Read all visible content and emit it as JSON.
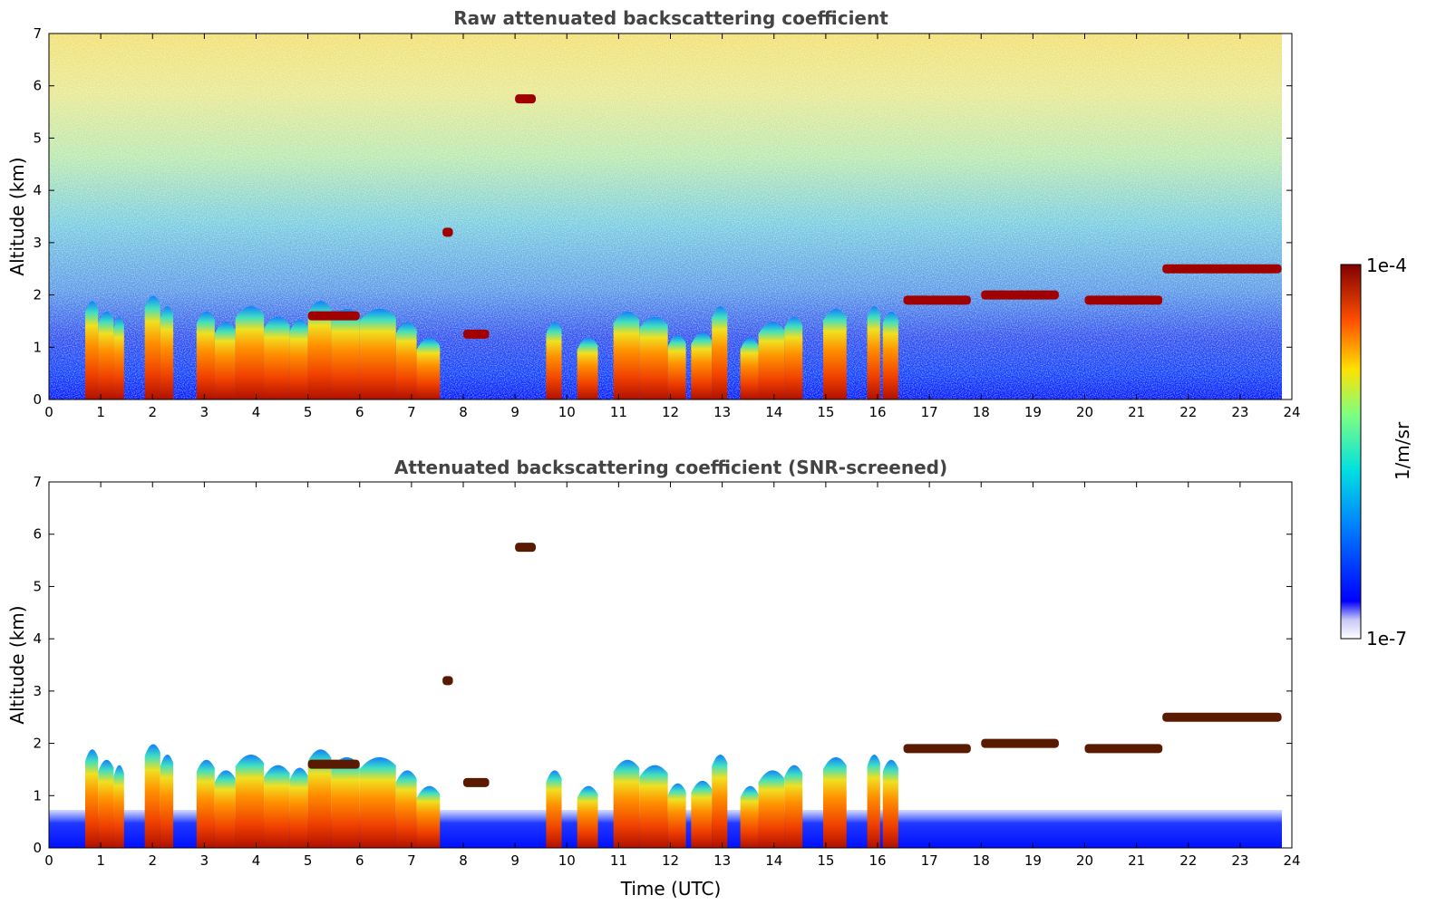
{
  "chart_data": [
    {
      "type": "heatmap",
      "title": "Raw attenuated backscattering coefficient",
      "xlabel": "",
      "ylabel": "Altitude (km)",
      "xlim": [
        0,
        24
      ],
      "ylim": [
        0,
        7
      ],
      "xticks": [
        "0",
        "1",
        "2",
        "3",
        "4",
        "5",
        "6",
        "7",
        "8",
        "9",
        "10",
        "11",
        "12",
        "13",
        "14",
        "15",
        "16",
        "17",
        "18",
        "19",
        "20",
        "21",
        "22",
        "23",
        "24"
      ],
      "yticks": [
        "0",
        "1",
        "2",
        "3",
        "4",
        "5",
        "6",
        "7"
      ],
      "data_extent_x": [
        0,
        23.8
      ],
      "grid": false,
      "colormap": "jet",
      "colorscale": "log",
      "clim": [
        "1e-7",
        "1e-4"
      ],
      "cloud_layers": [
        {
          "t_start": 5.0,
          "t_end": 6.0,
          "altitude": 1.6
        },
        {
          "t_start": 8.0,
          "t_end": 8.5,
          "altitude": 1.25
        },
        {
          "t_start": 9.0,
          "t_end": 9.4,
          "altitude": 5.75
        },
        {
          "t_start": 7.6,
          "t_end": 7.8,
          "altitude": 3.2
        },
        {
          "t_start": 16.5,
          "t_end": 17.8,
          "altitude": 1.9
        },
        {
          "t_start": 18.0,
          "t_end": 19.5,
          "altitude": 2.0
        },
        {
          "t_start": 20.0,
          "t_end": 21.5,
          "altitude": 1.9
        },
        {
          "t_start": 21.5,
          "t_end": 23.8,
          "altitude": 2.5
        }
      ]
    },
    {
      "type": "heatmap",
      "title": "Attenuated backscattering coefficient (SNR-screened)",
      "xlabel": "Time (UTC)",
      "ylabel": "Altitude (km)",
      "xlim": [
        0,
        24
      ],
      "ylim": [
        0,
        7
      ],
      "xticks": [
        "0",
        "1",
        "2",
        "3",
        "4",
        "5",
        "6",
        "7",
        "8",
        "9",
        "10",
        "11",
        "12",
        "13",
        "14",
        "15",
        "16",
        "17",
        "18",
        "19",
        "20",
        "21",
        "22",
        "23",
        "24"
      ],
      "yticks": [
        "0",
        "1",
        "2",
        "3",
        "4",
        "5",
        "6",
        "7"
      ],
      "data_extent_x": [
        0,
        23.8
      ],
      "grid": false,
      "colormap": "jet",
      "colorscale": "log",
      "clim": [
        "1e-7",
        "1e-4"
      ]
    }
  ],
  "colorbar": {
    "label": "1/m/sr",
    "max_label": "1e-4",
    "min_label": "1e-7"
  },
  "aerosol_columns": [
    [
      0.7,
      0.95,
      1.9
    ],
    [
      0.95,
      1.25,
      1.7
    ],
    [
      1.25,
      1.45,
      1.6
    ],
    [
      1.85,
      2.15,
      2.0
    ],
    [
      2.15,
      2.4,
      1.8
    ],
    [
      2.85,
      3.2,
      1.7
    ],
    [
      3.2,
      3.6,
      1.5
    ],
    [
      3.6,
      4.15,
      1.8
    ],
    [
      4.15,
      4.65,
      1.6
    ],
    [
      4.65,
      5.0,
      1.55
    ],
    [
      5.0,
      5.45,
      1.9
    ],
    [
      5.45,
      6.0,
      1.75
    ],
    [
      6.0,
      6.7,
      1.75
    ],
    [
      6.7,
      7.1,
      1.5
    ],
    [
      7.1,
      7.55,
      1.2
    ],
    [
      9.6,
      9.9,
      1.5
    ],
    [
      10.2,
      10.6,
      1.2
    ],
    [
      10.9,
      11.4,
      1.7
    ],
    [
      11.4,
      11.95,
      1.6
    ],
    [
      11.95,
      12.3,
      1.25
    ],
    [
      12.4,
      12.8,
      1.3
    ],
    [
      12.8,
      13.1,
      1.8
    ],
    [
      13.35,
      13.7,
      1.2
    ],
    [
      13.7,
      14.2,
      1.5
    ],
    [
      14.2,
      14.55,
      1.6
    ],
    [
      14.95,
      15.4,
      1.75
    ],
    [
      15.8,
      16.05,
      1.8
    ],
    [
      16.1,
      16.4,
      1.7
    ]
  ]
}
